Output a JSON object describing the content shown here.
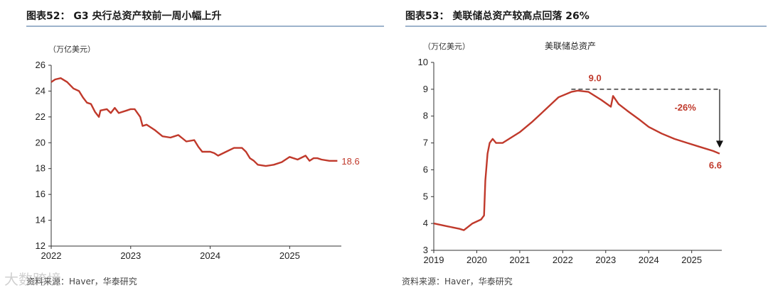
{
  "left": {
    "title": "图表52： G3 央行总资产较前一周小幅上升",
    "source": "资料来源：Haver，华泰研究",
    "watermark": "大数跨境",
    "unit_label": "（万亿美元）"
  },
  "right": {
    "title": "图表53： 美联储总资产较高点回落 26%",
    "source": "资料来源：Haver，华泰研究",
    "unit_label": "（万亿美元）"
  },
  "colors": {
    "line": "#c0392b",
    "axis": "#333333",
    "rule": "#9db3cc"
  },
  "chart_data": [
    {
      "type": "line",
      "title": "G3 央行总资产较前一周小幅上升",
      "ylabel": "（万亿美元）",
      "ylim": [
        12,
        26
      ],
      "yticks": [
        12,
        14,
        16,
        18,
        20,
        22,
        24,
        26
      ],
      "xlim": [
        2022.0,
        2025.65
      ],
      "xticks": [
        2022,
        2023,
        2024,
        2025
      ],
      "end_label": "18.6",
      "series": [
        {
          "name": "G3 央行总资产",
          "x": [
            2022.0,
            2022.05,
            2022.12,
            2022.2,
            2022.28,
            2022.35,
            2022.4,
            2022.45,
            2022.5,
            2022.55,
            2022.6,
            2022.62,
            2022.7,
            2022.75,
            2022.8,
            2022.85,
            2022.95,
            2023.0,
            2023.05,
            2023.12,
            2023.15,
            2023.2,
            2023.3,
            2023.4,
            2023.5,
            2023.55,
            2023.6,
            2023.7,
            2023.8,
            2023.85,
            2023.9,
            2024.0,
            2024.05,
            2024.1,
            2024.2,
            2024.3,
            2024.4,
            2024.45,
            2024.5,
            2024.55,
            2024.6,
            2024.7,
            2024.8,
            2024.9,
            2025.0,
            2025.1,
            2025.2,
            2025.25,
            2025.3,
            2025.35,
            2025.4,
            2025.5,
            2025.55,
            2025.6
          ],
          "values": [
            24.7,
            24.9,
            25.0,
            24.7,
            24.2,
            24.0,
            23.5,
            23.1,
            23.0,
            22.4,
            22.0,
            22.5,
            22.6,
            22.3,
            22.7,
            22.3,
            22.5,
            22.6,
            22.6,
            22.0,
            21.3,
            21.4,
            21.0,
            20.5,
            20.4,
            20.5,
            20.6,
            20.1,
            20.2,
            19.7,
            19.3,
            19.3,
            19.2,
            19.0,
            19.3,
            19.6,
            19.6,
            19.3,
            18.8,
            18.6,
            18.3,
            18.2,
            18.3,
            18.5,
            18.9,
            18.7,
            19.0,
            18.6,
            18.8,
            18.8,
            18.7,
            18.6,
            18.6,
            18.6
          ]
        }
      ]
    },
    {
      "type": "line",
      "title": "美联储总资产较高点回落 26%",
      "ylabel": "（万亿美元）",
      "legend": "美联储总资产",
      "ylim": [
        3,
        10
      ],
      "yticks": [
        3,
        4,
        5,
        6,
        7,
        8,
        9,
        10
      ],
      "xlim": [
        2019.0,
        2025.7
      ],
      "xticks": [
        2019,
        2020,
        2021,
        2022,
        2023,
        2024,
        2025
      ],
      "peak_label": "9.0",
      "end_label": "6.6",
      "change_label": "-26%",
      "series": [
        {
          "name": "美联储总资产",
          "x": [
            2019.0,
            2019.3,
            2019.6,
            2019.7,
            2019.9,
            2020.1,
            2020.17,
            2020.2,
            2020.25,
            2020.3,
            2020.37,
            2020.45,
            2020.6,
            2020.8,
            2021.0,
            2021.3,
            2021.6,
            2021.9,
            2022.2,
            2022.35,
            2022.6,
            2022.9,
            2023.12,
            2023.17,
            2023.3,
            2023.5,
            2023.8,
            2024.0,
            2024.3,
            2024.6,
            2024.9,
            2025.2,
            2025.5,
            2025.65
          ],
          "values": [
            4.0,
            3.9,
            3.8,
            3.75,
            4.0,
            4.15,
            4.3,
            5.6,
            6.6,
            7.0,
            7.15,
            7.0,
            7.0,
            7.2,
            7.4,
            7.8,
            8.25,
            8.7,
            8.9,
            8.95,
            8.9,
            8.6,
            8.35,
            8.75,
            8.45,
            8.2,
            7.85,
            7.6,
            7.35,
            7.15,
            7.0,
            6.85,
            6.7,
            6.6
          ]
        }
      ]
    }
  ]
}
